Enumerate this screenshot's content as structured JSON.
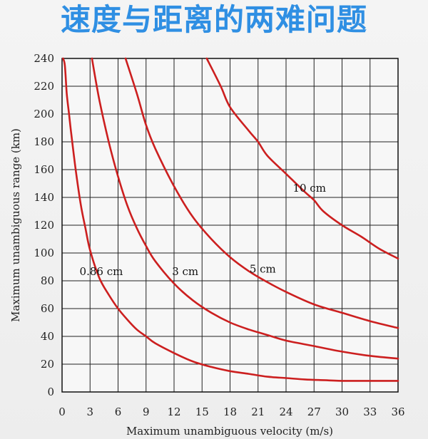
{
  "page": {
    "title": "速度与距离的两难问题"
  },
  "chart_data": {
    "type": "line",
    "title": "",
    "xlabel": "Maximum unambiguous velocity (m/s)",
    "ylabel": "Maximum unambiguous range (km)",
    "xlim": [
      0,
      36
    ],
    "ylim": [
      0,
      240
    ],
    "xticks": [
      0,
      3,
      6,
      9,
      12,
      15,
      18,
      21,
      24,
      27,
      30,
      33,
      36
    ],
    "yticks": [
      0,
      20,
      40,
      60,
      80,
      100,
      120,
      140,
      160,
      180,
      200,
      220,
      240
    ],
    "grid": true,
    "line_color": "#cc1f1f",
    "series": [
      {
        "name": "0.86 cm",
        "x": [
          0.1,
          0.3,
          0.5,
          0.75,
          1,
          1.5,
          2,
          2.5,
          3,
          4,
          5,
          6,
          7,
          8,
          9,
          10,
          12,
          14,
          16,
          18,
          20,
          22,
          24,
          26,
          28,
          30,
          32,
          34,
          36
        ],
        "y": [
          240,
          235,
          215,
          200,
          185,
          158,
          135,
          118,
          102,
          82,
          70,
          60,
          52,
          45,
          40,
          35,
          28,
          22,
          18,
          15,
          13,
          11,
          10,
          9,
          8.5,
          8,
          8,
          8,
          8
        ]
      },
      {
        "name": "3 cm",
        "x": [
          3.2,
          4,
          5,
          6,
          7,
          8,
          9,
          10,
          12,
          14,
          16,
          18,
          20,
          22,
          24,
          27,
          30,
          33,
          36
        ],
        "y": [
          240,
          210,
          180,
          155,
          134,
          118,
          105,
          94,
          78,
          66,
          57,
          50,
          45,
          41,
          37,
          33,
          29,
          26,
          24
        ]
      },
      {
        "name": "5 cm",
        "x": [
          6.8,
          8,
          9,
          10,
          12,
          14,
          16,
          18,
          20,
          22,
          24,
          27,
          30,
          33,
          36
        ],
        "y": [
          240,
          215,
          192,
          175,
          148,
          126,
          110,
          97,
          87,
          79,
          72,
          63,
          57,
          51,
          46
        ]
      },
      {
        "name": "10 cm",
        "x": [
          15.5,
          17,
          18,
          20,
          21,
          22,
          24,
          26,
          27,
          28,
          30,
          32,
          34,
          36
        ],
        "y": [
          240,
          220,
          205,
          188,
          180,
          170,
          157,
          144,
          138,
          130,
          120,
          112,
          103,
          96
        ]
      }
    ],
    "annotations": [
      {
        "text": "0.86 cm",
        "x": 4.2,
        "y": 84
      },
      {
        "text": "3 cm",
        "x": 13.2,
        "y": 84
      },
      {
        "text": "5 cm",
        "x": 21.5,
        "y": 86
      },
      {
        "text": "10 cm",
        "x": 26.5,
        "y": 144
      }
    ]
  }
}
